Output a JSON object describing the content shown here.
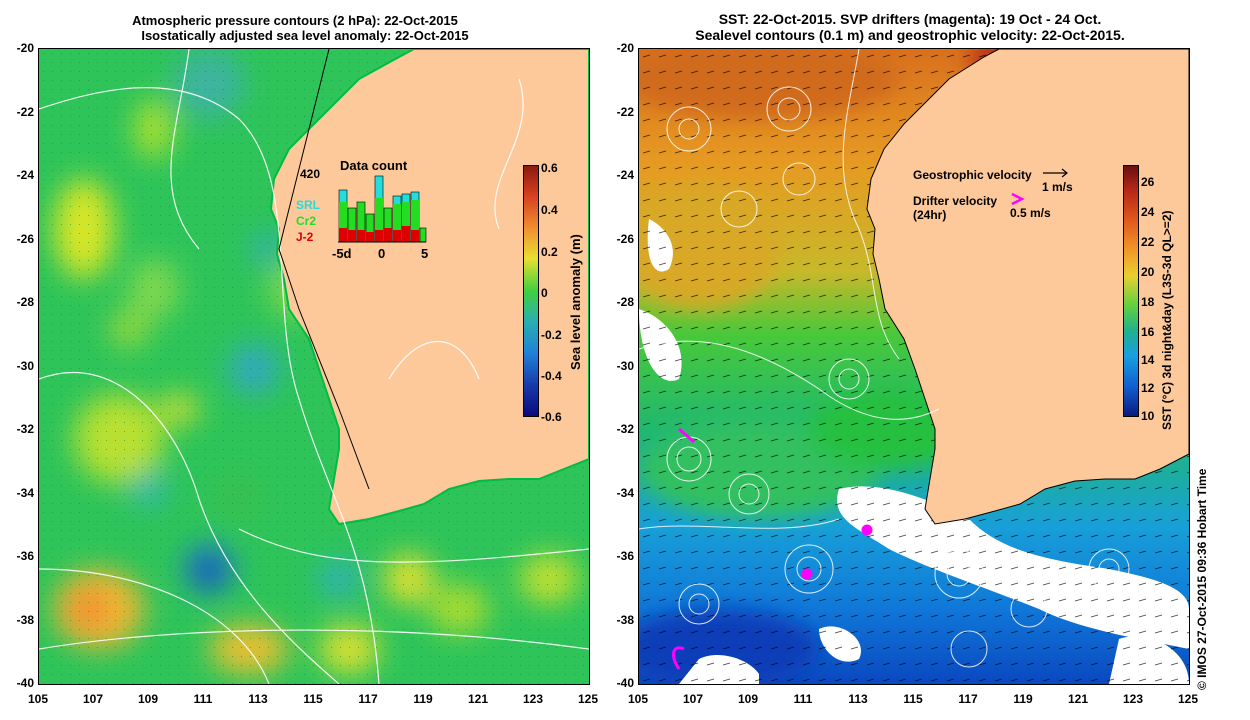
{
  "left_panel": {
    "title_line1": "Atmospheric pressure contours (2 hPa): 22-Oct-2015",
    "title_line2": "Isostatically adjusted sea level anomaly: 22-Oct-2015",
    "y_ticks": [
      "-20",
      "-22",
      "-24",
      "-26",
      "-28",
      "-30",
      "-32",
      "-34",
      "-36",
      "-38",
      "-40"
    ],
    "x_ticks": [
      "105",
      "107",
      "109",
      "111",
      "113",
      "115",
      "117",
      "119",
      "121",
      "123",
      "125"
    ],
    "colorbar": {
      "label": "Sea level anomaly (m)",
      "ticks": [
        "0.6",
        "0.4",
        "0.2",
        "0",
        "-0.2",
        "-0.4",
        "-0.6"
      ]
    },
    "data_count": {
      "title": "Data count",
      "max_label": "420",
      "x_ticks": [
        "-5d",
        "0",
        "5"
      ],
      "satellites": [
        {
          "name": "SRL",
          "color": "#22dddd"
        },
        {
          "name": "Cr2",
          "color": "#22dd22"
        },
        {
          "name": "J-2",
          "color": "#dd0000"
        }
      ]
    }
  },
  "right_panel": {
    "title_line1": "SST: 22-Oct-2015. SVP drifters (magenta): 19 Oct - 24 Oct.",
    "title_line2": "Sealevel contours (0.1 m) and geostrophic velocity: 22-Oct-2015.",
    "y_ticks": [
      "-20",
      "-22",
      "-24",
      "-26",
      "-28",
      "-30",
      "-32",
      "-34",
      "-36",
      "-38",
      "-40"
    ],
    "x_ticks": [
      "105",
      "107",
      "109",
      "111",
      "113",
      "115",
      "117",
      "119",
      "121",
      "123",
      "125"
    ],
    "colorbar": {
      "label": "SST (°C) 3d night&day (L3S-3d QL>=2)",
      "ticks": [
        "26",
        "24",
        "22",
        "20",
        "18",
        "16",
        "14",
        "12",
        "10"
      ]
    },
    "legend": {
      "geostrophic_label": "Geostrophic velocity",
      "geostrophic_scale": "1 m/s",
      "drifter_label": "Drifter velocity",
      "drifter_sub": "(24hr)",
      "drifter_scale": "0.5 m/s"
    }
  },
  "credit": "© IMOS 27-Oct-2015 09:36 Hobart Time",
  "colors": {
    "land": "#fdc99a",
    "drifter": "#ff00ff"
  }
}
